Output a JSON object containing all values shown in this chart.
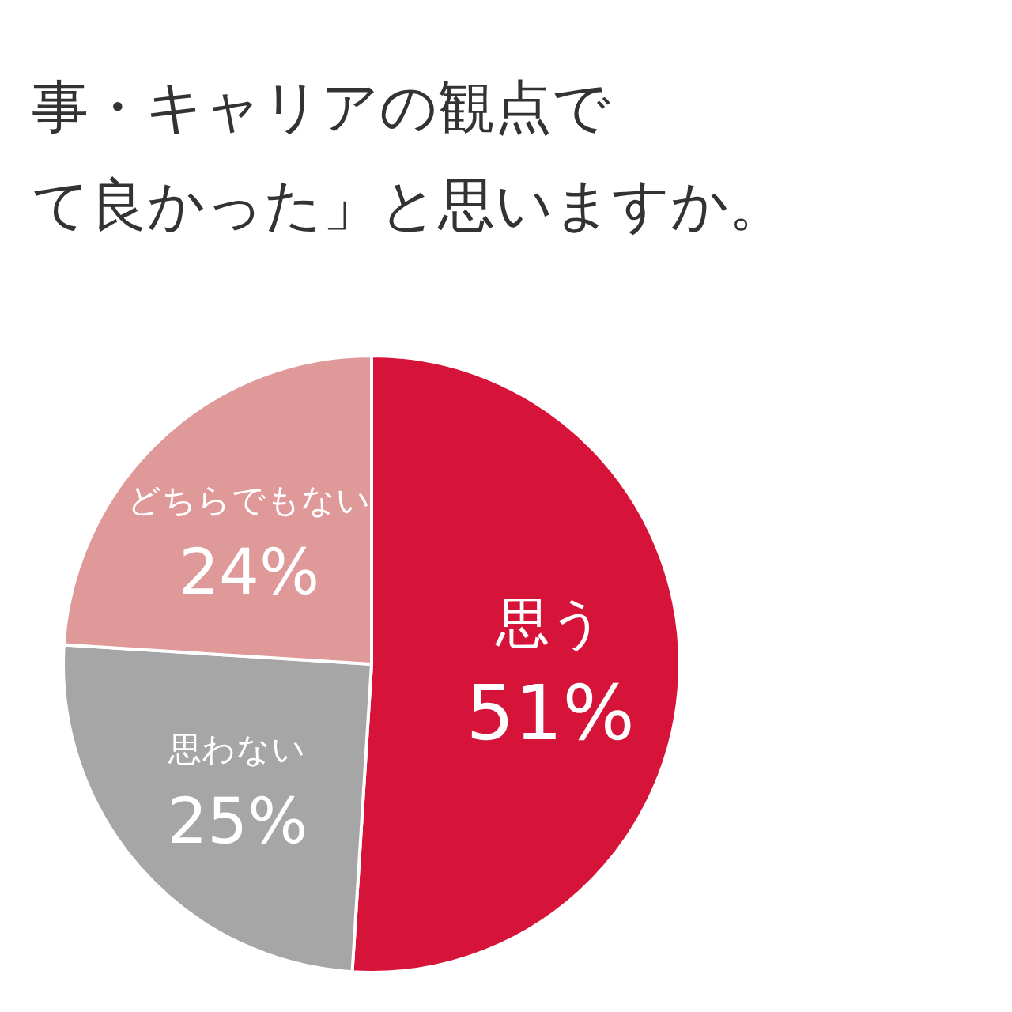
{
  "chart_data": {
    "type": "pie",
    "title": "事・キャリアの観点で",
    "subtitle": "て良かった」と思いますか。",
    "value_labels": [
      "51%",
      "25%",
      "24%"
    ],
    "categories": [
      "思う",
      "思わない",
      "どちらでもない"
    ],
    "values": [
      51,
      25,
      24
    ],
    "colors": [
      "#d61339",
      "#a6a6a6",
      "#df9999"
    ],
    "data_labels": true
  }
}
